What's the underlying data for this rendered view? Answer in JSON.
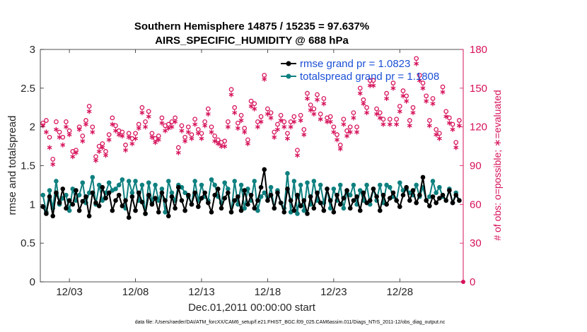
{
  "chart_data": {
    "type": "line",
    "title": "Southern Hemisphere 14875 / 15235 = 97.637%",
    "subtitle": "AIRS_SPECIFIC_HUMIDITY @ 688 hPa",
    "xlabel": "Dec.01,2011 00:00:00 start",
    "ylabel_left": "rmse and totalspread",
    "ylabel_right": "# of obs: o=possible; ∗=evaluated",
    "xlim": [
      0.8,
      32.8
    ],
    "ylim_left": [
      0,
      3
    ],
    "ylim_right": [
      0,
      180
    ],
    "x_ticks": [
      3,
      8,
      13,
      18,
      23,
      28
    ],
    "x_tick_labels": [
      "12/03",
      "12/08",
      "12/13",
      "12/18",
      "12/23",
      "12/28"
    ],
    "y_ticks_left": [
      0,
      0.5,
      1,
      1.5,
      2,
      2.5,
      3
    ],
    "y_tick_labels_left": [
      "0",
      "0.5",
      "1",
      "1.5",
      "2",
      "2.5",
      "3"
    ],
    "y_ticks_right": [
      0,
      30,
      60,
      90,
      120,
      150,
      180
    ],
    "y_tick_labels_right": [
      "0",
      "30",
      "60",
      "90",
      "120",
      "150",
      "180"
    ],
    "legend": [
      {
        "label": "rmse grand pr = 1.0823",
        "color": "#000000"
      },
      {
        "label": "totalspread grand pr = 1.1808",
        "color": "#0f8080"
      }
    ],
    "x": [
      1.0,
      1.25,
      1.5,
      1.75,
      2.0,
      2.25,
      2.5,
      2.75,
      3.0,
      3.25,
      3.5,
      3.75,
      4.0,
      4.25,
      4.5,
      4.75,
      5.0,
      5.25,
      5.5,
      5.75,
      6.0,
      6.25,
      6.5,
      6.75,
      7.0,
      7.25,
      7.5,
      7.75,
      8.0,
      8.25,
      8.5,
      8.75,
      9.0,
      9.25,
      9.5,
      9.75,
      10.0,
      10.25,
      10.5,
      10.75,
      11.0,
      11.25,
      11.5,
      11.75,
      12.0,
      12.25,
      12.5,
      12.75,
      13.0,
      13.25,
      13.5,
      13.75,
      14.0,
      14.25,
      14.5,
      14.75,
      15.0,
      15.25,
      15.5,
      15.75,
      16.0,
      16.25,
      16.5,
      16.75,
      17.0,
      17.25,
      17.5,
      17.75,
      18.0,
      18.25,
      18.5,
      18.75,
      19.0,
      19.25,
      19.5,
      19.75,
      20.0,
      20.25,
      20.5,
      20.75,
      21.0,
      21.25,
      21.5,
      21.75,
      22.0,
      22.25,
      22.5,
      22.75,
      23.0,
      23.25,
      23.5,
      23.75,
      24.0,
      24.25,
      24.5,
      24.75,
      25.0,
      25.25,
      25.5,
      25.75,
      26.0,
      26.25,
      26.5,
      26.75,
      27.0,
      27.25,
      27.5,
      27.75,
      28.0,
      28.25,
      28.5,
      28.75,
      29.0,
      29.25,
      29.5,
      29.75,
      30.0,
      30.25,
      30.5,
      30.75,
      31.0,
      31.25,
      31.5,
      31.75,
      32.0,
      32.25,
      32.5
    ],
    "series": [
      {
        "name": "rmse",
        "color": "#000000",
        "values": [
          0.97,
          0.88,
          1.1,
          0.85,
          1.15,
          1.02,
          1.2,
          0.95,
          1.05,
          1.0,
          1.18,
          0.92,
          1.04,
          1.1,
          0.85,
          1.15,
          1.02,
          0.98,
          1.22,
          1.08,
          1.15,
          0.92,
          1.05,
          1.12,
          0.98,
          1.05,
          0.83,
          1.1,
          0.92,
          1.15,
          1.03,
          0.88,
          1.12,
          1.0,
          1.08,
          0.9,
          1.15,
          1.05,
          0.85,
          1.1,
          0.95,
          1.22,
          1.05,
          0.92,
          1.12,
          1.0,
          1.15,
          0.97,
          1.08,
          1.15,
          1.02,
          0.9,
          1.12,
          1.2,
          0.95,
          1.08,
          1.15,
          0.9,
          1.05,
          1.1,
          0.92,
          1.18,
          1.0,
          1.12,
          0.95,
          1.05,
          1.22,
          1.45,
          1.05,
          1.12,
          0.95,
          1.15,
          1.02,
          0.9,
          1.2,
          1.05,
          0.92,
          1.12,
          0.98,
          1.05,
          0.88,
          1.1,
          0.95,
          1.15,
          1.02,
          0.92,
          1.2,
          1.05,
          0.9,
          1.12,
          1.0,
          1.08,
          1.18,
          0.95,
          1.05,
          1.1,
          0.92,
          1.15,
          1.02,
          1.05,
          1.2,
          1.1,
          0.92,
          1.12,
          1.0,
          1.08,
          1.15,
          1.05,
          0.97,
          1.12,
          1.22,
          1.05,
          1.18,
          1.02,
          1.12,
          1.35,
          1.05,
          0.98,
          1.1,
          1.02,
          1.08,
          1.12,
          1.05,
          1.18,
          1.02,
          1.12,
          1.05
        ]
      },
      {
        "name": "totalspread",
        "color": "#0f8080",
        "values": [
          1.12,
          0.9,
          1.18,
          0.95,
          1.3,
          1.0,
          1.08,
          1.12,
          0.92,
          1.2,
          1.05,
          1.12,
          1.28,
          1.02,
          1.15,
          1.35,
          1.0,
          1.25,
          1.05,
          1.15,
          1.28,
          1.18,
          1.2,
          1.25,
          1.32,
          0.95,
          1.3,
          1.15,
          1.3,
          1.05,
          1.25,
          0.88,
          1.28,
          1.02,
          1.25,
          1.05,
          1.2,
          0.9,
          1.3,
          1.15,
          1.05,
          1.25,
          1.22,
          1.15,
          1.1,
          1.0,
          1.3,
          1.05,
          1.25,
          1.1,
          1.05,
          1.32,
          1.25,
          1.1,
          1.02,
          1.28,
          1.2,
          0.9,
          1.3,
          1.0,
          1.25,
          0.95,
          1.2,
          1.05,
          1.3,
          0.92,
          1.1,
          1.15,
          1.05,
          1.22,
          0.95,
          1.18,
          1.02,
          0.95,
          1.4,
          0.9,
          1.3,
          0.88,
          1.25,
          0.92,
          1.28,
          1.0,
          1.3,
          1.05,
          1.25,
          1.02,
          1.2,
          0.95,
          1.2,
          1.05,
          1.25,
          0.95,
          1.15,
          1.12,
          1.25,
          1.0,
          1.18,
          1.05,
          1.25,
          1.0,
          1.2,
          1.05,
          1.25,
          1.02,
          1.25,
          1.22,
          1.1,
          1.05,
          1.28,
          1.18,
          1.2,
          1.15,
          1.12,
          1.25,
          1.1,
          1.22,
          1.05,
          1.1,
          1.3,
          1.15,
          1.22,
          1.1,
          1.05,
          1.2,
          1.02,
          1.15,
          1.05
        ]
      }
    ],
    "obs_possible": [
      123,
      125,
      112,
      95,
      124,
      116,
      112,
      124,
      117,
      101,
      102,
      120,
      113,
      125,
      136,
      120,
      97,
      105,
      107,
      101,
      114,
      127,
      121,
      117,
      116,
      106,
      115,
      111,
      115,
      122,
      135,
      124,
      132,
      115,
      111,
      113,
      127,
      121,
      122,
      124,
      127,
      104,
      121,
      112,
      120,
      114,
      126,
      118,
      115,
      124,
      134,
      120,
      113,
      110,
      108,
      109,
      124,
      149,
      135,
      123,
      129,
      119,
      110,
      140,
      138,
      124,
      128,
      160,
      134,
      131,
      116,
      122,
      129,
      124,
      115,
      124,
      128,
      102,
      129,
      118,
      146,
      137,
      134,
      145,
      130,
      142,
      127,
      128,
      120,
      114,
      106,
      126,
      117,
      120,
      131,
      120,
      150,
      141,
      135,
      156,
      156,
      134,
      131,
      126,
      146,
      126,
      154,
      126,
      136,
      148,
      144,
      125,
      135,
      173,
      160,
      154,
      144,
      125,
      142,
      118,
      115,
      151,
      132,
      127,
      122,
      108,
      125
    ],
    "obs_evaluated": [
      121,
      116,
      104,
      91,
      118,
      112,
      106,
      120,
      114,
      97,
      100,
      118,
      109,
      122,
      132,
      116,
      94,
      101,
      104,
      98,
      110,
      122,
      117,
      114,
      113,
      102,
      112,
      107,
      111,
      119,
      131,
      120,
      128,
      112,
      108,
      110,
      123,
      117,
      119,
      120,
      124,
      100,
      117,
      109,
      116,
      111,
      122,
      115,
      111,
      121,
      130,
      116,
      109,
      107,
      105,
      105,
      120,
      145,
      131,
      119,
      125,
      116,
      107,
      136,
      134,
      120,
      124,
      157,
      130,
      127,
      112,
      118,
      125,
      120,
      111,
      120,
      124,
      98,
      125,
      114,
      142,
      133,
      130,
      141,
      126,
      138,
      124,
      124,
      116,
      110,
      103,
      122,
      113,
      116,
      127,
      116,
      146,
      138,
      131,
      152,
      152,
      130,
      127,
      122,
      142,
      122,
      150,
      122,
      132,
      144,
      140,
      121,
      131,
      169,
      156,
      150,
      140,
      121,
      138,
      114,
      111,
      147,
      128,
      123,
      118,
      104,
      121
    ],
    "annotations": [
      {
        "text": "data file: /Users/raeder/DAI/ATM_forcXX/CAM6_setup/f.e21.FHIST_BGC.f09_025.CAM6assim.011/Diags_NTrS_2011-12/obs_diag_output.nc"
      }
    ]
  }
}
